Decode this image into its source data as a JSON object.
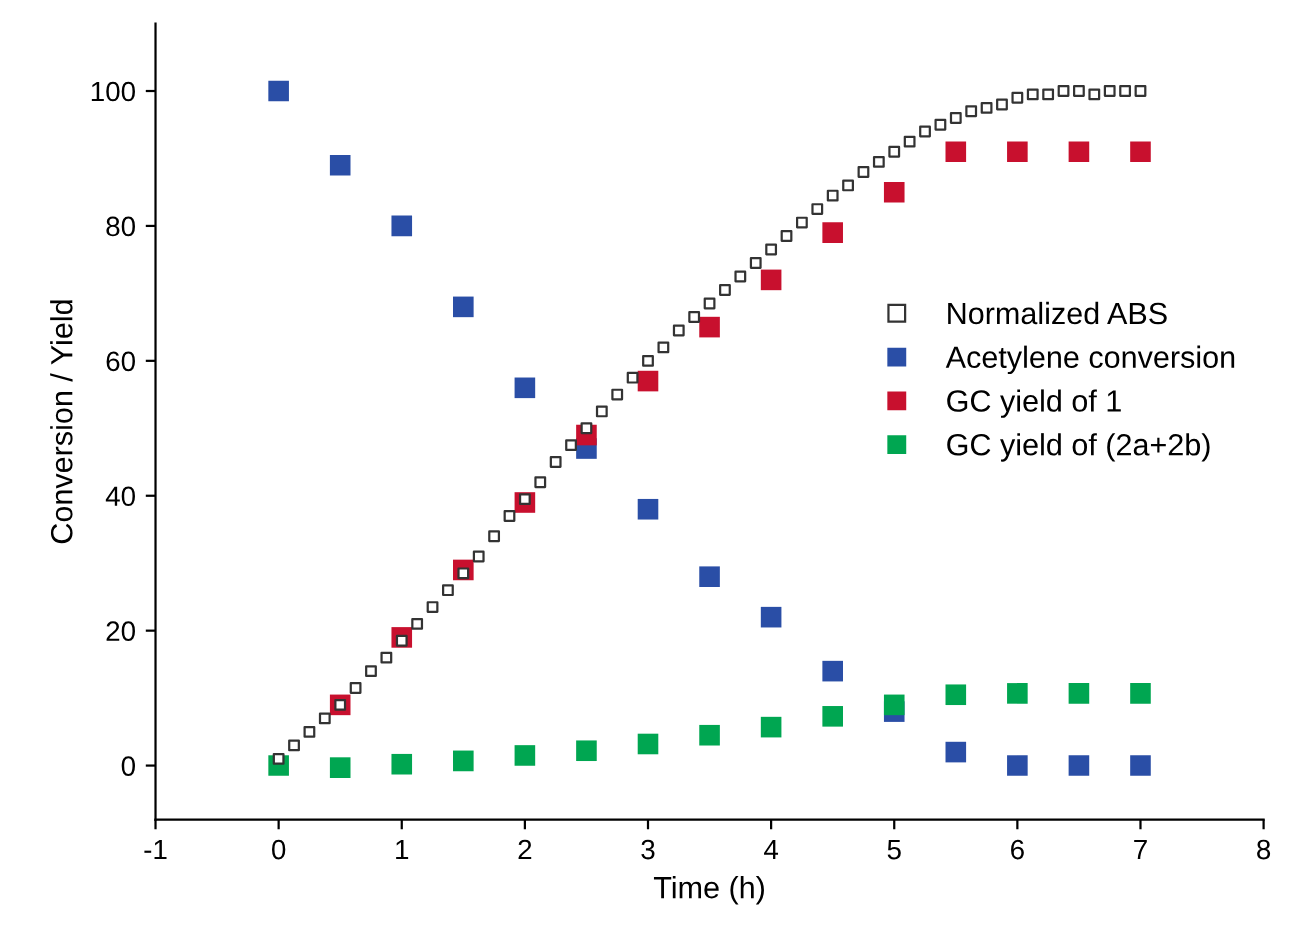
{
  "chart_data": {
    "type": "scatter",
    "xlabel": "Time (h)",
    "ylabel": "Conversion / Yield",
    "xlim": [
      -1,
      8
    ],
    "ylim": [
      -8,
      110
    ],
    "xticks": [
      -1,
      0,
      1,
      2,
      3,
      4,
      5,
      6,
      7,
      8
    ],
    "yticks": [
      0,
      20,
      40,
      60,
      80,
      100
    ],
    "marker": "square",
    "grid": false,
    "legend": "right",
    "series": [
      {
        "name": "Normalized ABS",
        "color": "#ffffff",
        "x": [
          0,
          0.125,
          0.25,
          0.375,
          0.5,
          0.625,
          0.75,
          0.875,
          1,
          1.125,
          1.25,
          1.375,
          1.5,
          1.625,
          1.75,
          1.875,
          2,
          2.125,
          2.25,
          2.375,
          2.5,
          2.625,
          2.75,
          2.875,
          3,
          3.125,
          3.25,
          3.375,
          3.5,
          3.625,
          3.75,
          3.875,
          4,
          4.125,
          4.25,
          4.375,
          4.5,
          4.625,
          4.75,
          4.875,
          5,
          5.125,
          5.25,
          5.375,
          5.5,
          5.625,
          5.75,
          5.875,
          6,
          6.125,
          6.25,
          6.375,
          6.5,
          6.625,
          6.75,
          6.875,
          7
        ],
        "values": [
          1,
          3,
          5,
          7,
          9,
          11.5,
          14,
          16,
          18.5,
          21,
          23.5,
          26,
          28.5,
          31,
          34,
          37,
          39.5,
          42,
          45,
          47.5,
          50,
          52.5,
          55,
          57.5,
          60,
          62,
          64.5,
          66.5,
          68.5,
          70.5,
          72.5,
          74.5,
          76.5,
          78.5,
          80.5,
          82.5,
          84.5,
          86,
          88,
          89.5,
          91,
          92.5,
          94,
          95,
          96,
          97,
          97.5,
          98,
          99,
          99.5,
          99.5,
          100,
          100,
          99.5,
          100,
          100,
          100
        ]
      },
      {
        "name": "Acetylene conversion",
        "color": "#2a4ea6",
        "x": [
          0,
          0.5,
          1,
          1.5,
          2,
          2.5,
          3,
          3.5,
          4,
          4.5,
          5,
          5.5,
          6,
          6.5,
          7
        ],
        "values": [
          100,
          89,
          80,
          68,
          56,
          47,
          38,
          28,
          22,
          14,
          8,
          2,
          0,
          0,
          0
        ]
      },
      {
        "name": "GC yield of 1",
        "color": "#c8102e",
        "x": [
          0.5,
          1,
          1.5,
          2,
          2.5,
          3,
          3.5,
          4,
          4.5,
          5,
          5.5,
          6,
          6.5,
          7
        ],
        "values": [
          9,
          19,
          29,
          39,
          49,
          57,
          65,
          72,
          79,
          85,
          91,
          91,
          91,
          91
        ]
      },
      {
        "name": "GC yield of (2a+2b)",
        "color": "#00a651",
        "x": [
          0,
          0.5,
          1,
          1.5,
          2,
          2.5,
          3,
          3.5,
          4,
          4.5,
          5,
          5.5,
          6,
          6.5,
          7
        ],
        "values": [
          0,
          -0.3,
          0.2,
          0.7,
          1.5,
          2.2,
          3.2,
          4.5,
          5.7,
          7.3,
          9,
          10.5,
          10.7,
          10.7,
          10.7
        ]
      }
    ]
  }
}
